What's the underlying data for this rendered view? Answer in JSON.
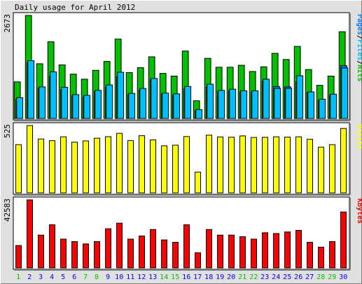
{
  "chart_data": {
    "type": "bar",
    "title": "Daily usage for April 2012",
    "categories": [
      "1",
      "2",
      "3",
      "4",
      "5",
      "6",
      "7",
      "8",
      "9",
      "10",
      "11",
      "12",
      "13",
      "14",
      "15",
      "16",
      "17",
      "18",
      "19",
      "20",
      "21",
      "22",
      "23",
      "24",
      "25",
      "26",
      "27",
      "28",
      "29",
      "30"
    ],
    "weekend_days": [
      "1",
      "7",
      "8",
      "14",
      "15",
      "21",
      "22",
      "28",
      "29"
    ],
    "panels": [
      {
        "id": "hits",
        "ymax_label": "2673",
        "ylim": [
          0,
          2673
        ],
        "legend": [
          {
            "text": "Pages",
            "color": "#0080ff"
          },
          {
            "text": "Files",
            "color": "#00c0ff"
          },
          {
            "text": "Hits",
            "color": "#00c000"
          }
        ],
        "series": [
          {
            "name": "Hits",
            "color": "#00c000",
            "values": [
              950,
              2673,
              1420,
              1990,
              1390,
              1150,
              1020,
              1250,
              1480,
              2060,
              1190,
              1320,
              1600,
              1170,
              1100,
              1750,
              460,
              1560,
              1330,
              1330,
              1380,
              1220,
              1340,
              1690,
              1530,
              1870,
              1270,
              860,
              1100,
              2250
            ]
          },
          {
            "name": "Files",
            "color": "#00c0ff",
            "values": [
              540,
              1500,
              820,
              1210,
              810,
              620,
              600,
              730,
              870,
              1200,
              650,
              780,
              1040,
              660,
              640,
              830,
              230,
              890,
              730,
              760,
              720,
              720,
              1020,
              780,
              780,
              1110,
              690,
              500,
              630,
              1310
            ]
          },
          {
            "name": "Pages",
            "color": "#0080ff",
            "values": [
              500,
              1440,
              790,
              1090,
              750,
              590,
              560,
              700,
              810,
              1080,
              620,
              730,
              1000,
              640,
              600,
              770,
              200,
              820,
              690,
              720,
              690,
              680,
              970,
              830,
              820,
              950,
              670,
              470,
              600,
              1370
            ]
          }
        ]
      },
      {
        "id": "visits",
        "ymax_label": "525",
        "ylim": [
          0,
          525
        ],
        "legend": [
          {
            "text": "Visits",
            "color": "#ffff00"
          }
        ],
        "series": [
          {
            "name": "Visits",
            "color": "#ffff00",
            "values": [
              376,
              525,
              420,
              407,
              437,
              395,
              405,
              426,
              438,
              464,
              408,
              446,
              413,
              367,
              372,
              439,
              162,
              450,
              436,
              434,
              444,
              432,
              433,
              437,
              435,
              437,
              418,
              356,
              376,
              502
            ]
          }
        ]
      },
      {
        "id": "kbytes",
        "ymax_label": "42583",
        "ylim": [
          0,
          42583
        ],
        "legend": [
          {
            "text": "KBytes",
            "color": "#ff0000"
          }
        ],
        "series": [
          {
            "name": "KBytes",
            "color": "#ff0000",
            "values": [
              14000,
              42583,
              20500,
              27000,
              18000,
              16500,
              15000,
              16500,
              24500,
              28000,
              18000,
              20000,
              24000,
              17500,
              16000,
              27000,
              9500,
              24000,
              20500,
              20500,
              19500,
              18000,
              22000,
              21500,
              22500,
              23500,
              16000,
              13000,
              16500,
              35000
            ]
          }
        ]
      }
    ],
    "colors": {
      "background": "#e0e0e0",
      "plot_background": "#ffffff",
      "weekday_label": "#0000ff",
      "weekend_label": "#00c000",
      "text": "#000000"
    }
  }
}
